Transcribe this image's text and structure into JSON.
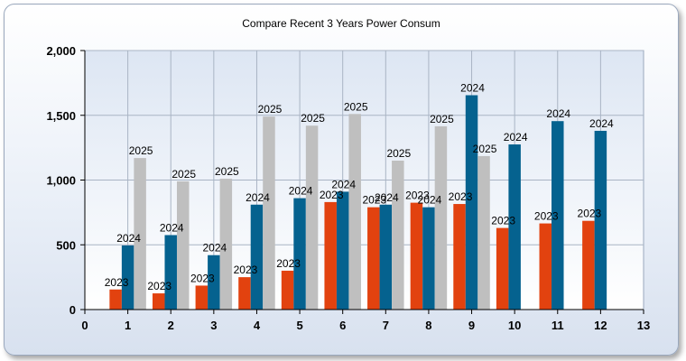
{
  "chart_data": {
    "type": "bar",
    "title": "Compare Recent 3 Years Power Consum",
    "xlabel": "",
    "ylabel": "",
    "xlim": [
      0,
      13
    ],
    "ylim": [
      0,
      2000
    ],
    "x_ticks": [
      "0",
      "1",
      "2",
      "3",
      "4",
      "5",
      "6",
      "7",
      "8",
      "9",
      "10",
      "11",
      "12",
      "13"
    ],
    "y_ticks": [
      "0",
      "500",
      "1,000",
      "1,500",
      "2,000"
    ],
    "y_tick_values": [
      0,
      500,
      1000,
      1500,
      2000
    ],
    "categories": [
      1,
      2,
      3,
      4,
      5,
      6,
      7,
      8,
      9,
      10,
      11,
      12
    ],
    "grid": true,
    "legend": "none",
    "series": [
      {
        "label": "2023",
        "color": "#e2420f",
        "values": [
          155,
          125,
          185,
          250,
          300,
          830,
          790,
          825,
          815,
          630,
          665,
          685
        ]
      },
      {
        "label": "2024",
        "color": "#05628f",
        "values": [
          495,
          575,
          420,
          810,
          860,
          910,
          810,
          790,
          1655,
          1275,
          1455,
          1380
        ]
      },
      {
        "label": "2025",
        "color": "#bfbfbf",
        "values": [
          1170,
          990,
          1010,
          1490,
          1420,
          1510,
          1150,
          1415,
          1185,
          null,
          null,
          null
        ]
      }
    ]
  }
}
